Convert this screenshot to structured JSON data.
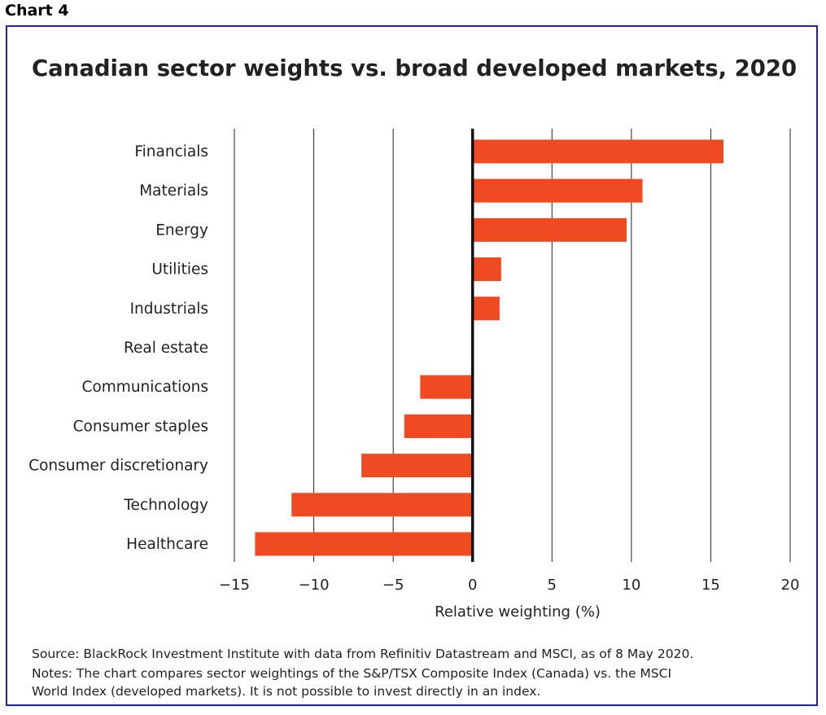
{
  "header": {
    "chart_label": "Chart 4"
  },
  "chart_data": {
    "type": "bar",
    "orientation": "horizontal",
    "title": "Canadian sector weights vs. broad developed markets, 2020",
    "xlabel": "Relative weighting (%)",
    "ylabel": "",
    "xlim": [
      -15,
      20
    ],
    "xticks": [
      -15,
      -10,
      -5,
      0,
      5,
      10,
      15,
      20
    ],
    "grid": "vertical",
    "bar_color": "#f04a23",
    "categories": [
      "Financials",
      "Materials",
      "Energy",
      "Utilities",
      "Industrials",
      "Real estate",
      "Communications",
      "Consumer staples",
      "Consumer discretionary",
      "Technology",
      "Healthcare"
    ],
    "values": [
      15.8,
      10.7,
      9.7,
      1.8,
      1.7,
      0,
      -3.3,
      -4.3,
      -7.0,
      -11.4,
      -13.7
    ]
  },
  "footer": {
    "source": "Source: BlackRock Investment Institute with data from Refinitiv Datastream and MSCI, as of 8 May 2020.",
    "notes_line1": "Notes: The chart compares sector weightings of the S&P/TSX Composite Index (Canada) vs. the MSCI",
    "notes_line2": "World Index (developed markets). It is not possible to invest directly in an index."
  }
}
